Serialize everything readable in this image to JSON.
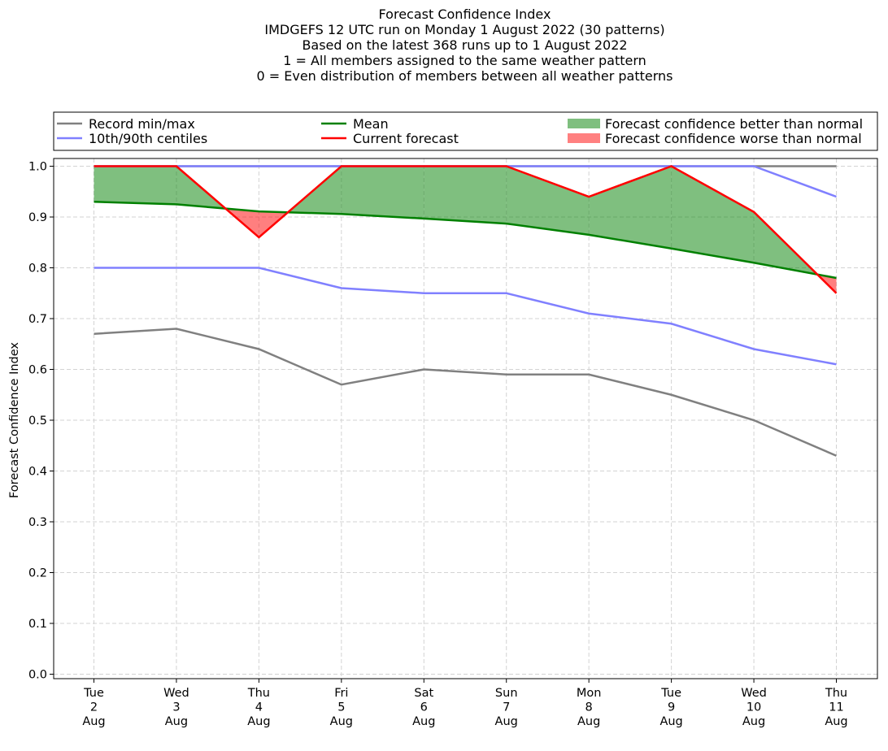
{
  "chart_data": {
    "type": "line",
    "title_lines": [
      "Forecast Confidence Index",
      "IMDGEFS 12 UTC run on Monday 1 August 2022 (30 patterns)",
      "Based on the latest 368 runs up to 1 August 2022",
      "1 = All members assigned to the same weather pattern",
      "0 = Even distribution of members between all weather patterns"
    ],
    "ylabel": "Forecast Confidence Index",
    "xlabel": "",
    "ylim": [
      0.0,
      1.0
    ],
    "yticks": [
      "0.0",
      "0.1",
      "0.2",
      "0.3",
      "0.4",
      "0.5",
      "0.6",
      "0.7",
      "0.8",
      "0.9",
      "1.0"
    ],
    "grid": true,
    "legend_placement": "top, above plot",
    "categories": [
      [
        "Tue",
        "2",
        "Aug"
      ],
      [
        "Wed",
        "3",
        "Aug"
      ],
      [
        "Thu",
        "4",
        "Aug"
      ],
      [
        "Fri",
        "5",
        "Aug"
      ],
      [
        "Sat",
        "6",
        "Aug"
      ],
      [
        "Sun",
        "7",
        "Aug"
      ],
      [
        "Mon",
        "8",
        "Aug"
      ],
      [
        "Tue",
        "9",
        "Aug"
      ],
      [
        "Wed",
        "10",
        "Aug"
      ],
      [
        "Thu",
        "11",
        "Aug"
      ]
    ],
    "series": [
      {
        "name": "Record min/max",
        "role": "record_min",
        "color": "#808080",
        "values": [
          0.67,
          0.68,
          0.64,
          0.57,
          0.6,
          0.59,
          0.59,
          0.55,
          0.5,
          0.43
        ]
      },
      {
        "name": "Record min/max",
        "role": "record_max",
        "color": "#808080",
        "values": [
          1.0,
          1.0,
          1.0,
          1.0,
          1.0,
          1.0,
          1.0,
          1.0,
          1.0,
          1.0
        ]
      },
      {
        "name": "10th/90th centiles",
        "role": "p10",
        "color": "#8080ff",
        "values": [
          0.8,
          0.8,
          0.8,
          0.76,
          0.75,
          0.75,
          0.71,
          0.69,
          0.64,
          0.61
        ]
      },
      {
        "name": "10th/90th centiles",
        "role": "p90",
        "color": "#8080ff",
        "values": [
          1.0,
          1.0,
          1.0,
          1.0,
          1.0,
          1.0,
          1.0,
          1.0,
          1.0,
          0.94
        ]
      },
      {
        "name": "Mean",
        "role": "mean",
        "color": "#008000",
        "values": [
          0.93,
          0.925,
          0.911,
          0.906,
          0.897,
          0.887,
          0.865,
          0.838,
          0.81,
          0.78
        ]
      },
      {
        "name": "Current forecast",
        "role": "current",
        "color": "#ff0000",
        "values": [
          1.0,
          1.0,
          0.86,
          1.0,
          1.0,
          1.0,
          0.94,
          1.0,
          0.91,
          0.75
        ]
      }
    ],
    "fills": [
      {
        "name": "Forecast confidence better than normal",
        "color": "#008000",
        "opacity": 0.5
      },
      {
        "name": "Forecast confidence worse than normal",
        "color": "#ff0000",
        "opacity": 0.5
      }
    ],
    "legend": [
      {
        "label": "Record min/max",
        "kind": "line",
        "color": "#808080"
      },
      {
        "label": "10th/90th centiles",
        "kind": "line",
        "color": "#8080ff"
      },
      {
        "label": "Mean",
        "kind": "line",
        "color": "#008000"
      },
      {
        "label": "Current forecast",
        "kind": "line",
        "color": "#ff0000"
      },
      {
        "label": "Forecast confidence better than normal",
        "kind": "patch",
        "color": "#7fbf7f"
      },
      {
        "label": "Forecast confidence worse than normal",
        "kind": "patch",
        "color": "#ff8080"
      }
    ]
  }
}
